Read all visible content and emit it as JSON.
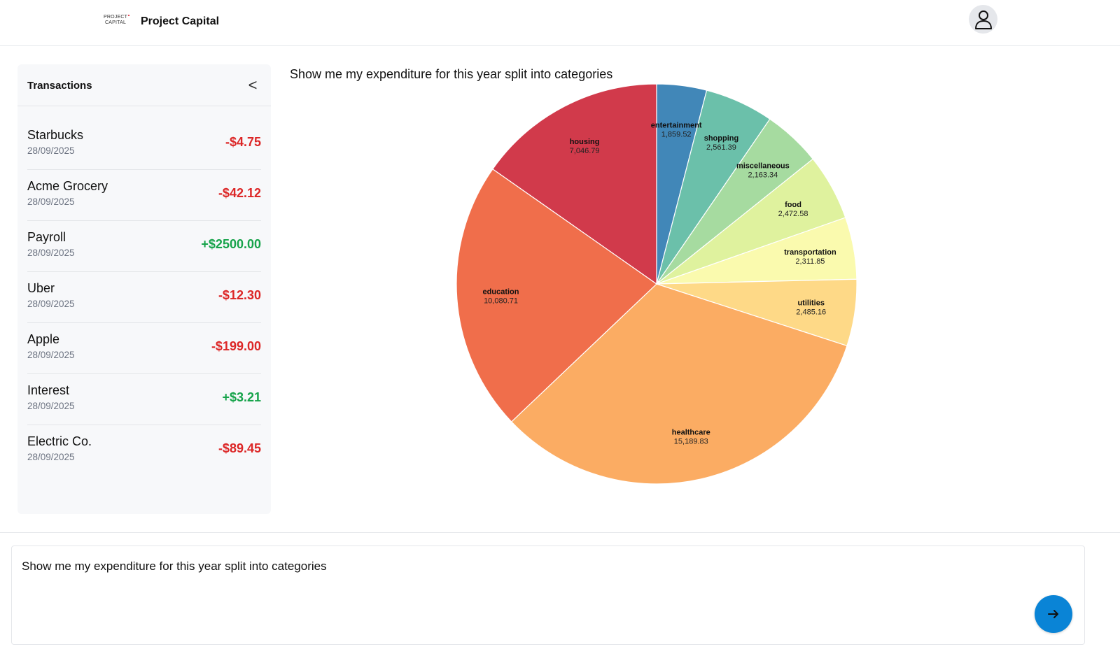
{
  "header": {
    "logo_line1": "PROJECT",
    "logo_line2": "CAPITAL",
    "app_title": "Project Capital",
    "avatar_icon": "user-icon"
  },
  "sidebar": {
    "title": "Transactions",
    "collapse_label": "<",
    "transactions": [
      {
        "name": "Starbucks",
        "date": "28/09/2025",
        "amount": "-$4.75",
        "type": "debit"
      },
      {
        "name": "Acme Grocery",
        "date": "28/09/2025",
        "amount": "-$42.12",
        "type": "debit"
      },
      {
        "name": "Payroll",
        "date": "28/09/2025",
        "amount": "+$2500.00",
        "type": "credit"
      },
      {
        "name": "Uber",
        "date": "28/09/2025",
        "amount": "-$12.30",
        "type": "debit"
      },
      {
        "name": "Apple",
        "date": "28/09/2025",
        "amount": "-$199.00",
        "type": "debit"
      },
      {
        "name": "Interest",
        "date": "28/09/2025",
        "amount": "+$3.21",
        "type": "credit"
      },
      {
        "name": "Electric Co.",
        "date": "28/09/2025",
        "amount": "-$89.45",
        "type": "debit"
      }
    ]
  },
  "main": {
    "chart_heading": "Show me my expenditure for this year split into categories"
  },
  "chart_data": {
    "type": "pie",
    "title": "",
    "categories": [
      "entertainment",
      "shopping",
      "miscellaneous",
      "food",
      "transportation",
      "utilities",
      "healthcare",
      "education",
      "housing"
    ],
    "values": [
      1859.52,
      2561.39,
      2163.34,
      2472.58,
      2311.85,
      2485.16,
      15189.83,
      10080.71,
      7046.79
    ],
    "value_labels": [
      "1,859.52",
      "2,561.39",
      "2,163.34",
      "2,472.58",
      "2,311.85",
      "2,485.16",
      "15,189.83",
      "10,080.71",
      "7,046.79"
    ],
    "colors": [
      "#4187b8",
      "#6bc0aa",
      "#a6dba0",
      "#dff29e",
      "#fafaae",
      "#fed987",
      "#fbac63",
      "#f06e4b",
      "#d13a4b"
    ],
    "start": "12 o'clock, clockwise",
    "legend": "none"
  },
  "composer": {
    "input_value": "Show me my expenditure for this year split into categories",
    "send_icon": "arrow-right-icon"
  },
  "colors": {
    "accent": "#0a84d6",
    "negative": "#dc2626",
    "positive": "#16a34a"
  }
}
